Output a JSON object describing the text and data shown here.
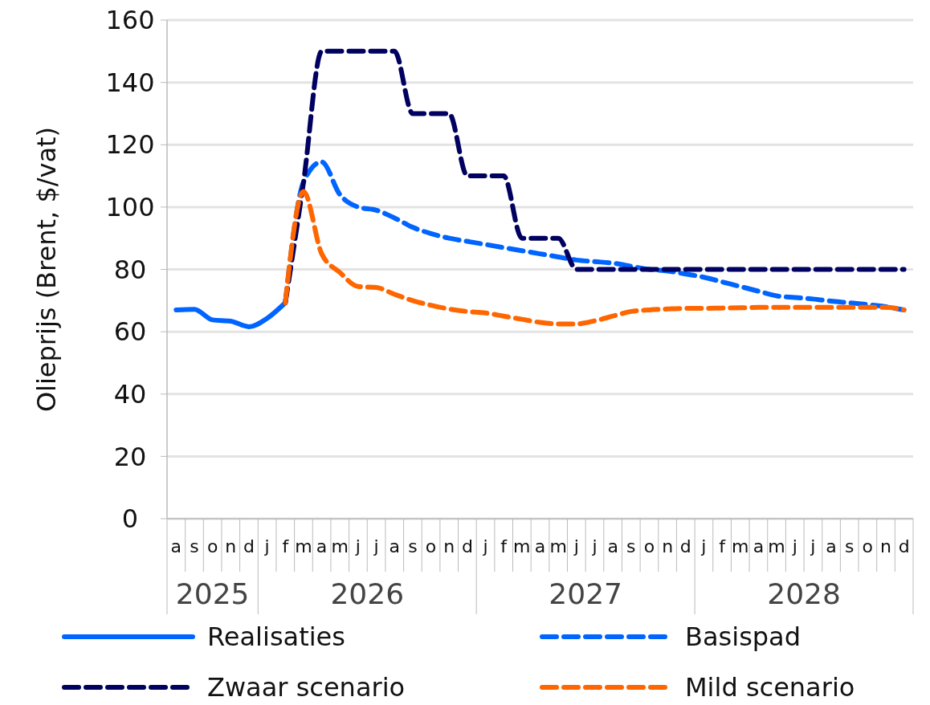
{
  "chart_data": {
    "type": "line",
    "ylabel": "Olieprijs (Brent, $/vat)",
    "categories": [
      "a",
      "s",
      "o",
      "n",
      "d",
      "j",
      "f",
      "m",
      "a",
      "m",
      "j",
      "j",
      "a",
      "s",
      "o",
      "n",
      "d",
      "j",
      "f",
      "m",
      "a",
      "m",
      "j",
      "j",
      "a",
      "s",
      "o",
      "n",
      "d",
      "j",
      "f",
      "m",
      "a",
      "m",
      "j",
      "j",
      "a",
      "s",
      "o",
      "n",
      "d"
    ],
    "annotations": [
      "2025",
      "2026",
      "2027",
      "2028"
    ],
    "ylim": [
      0,
      160
    ],
    "yticks": [
      0,
      20,
      40,
      60,
      80,
      100,
      120,
      140,
      160
    ],
    "grid": "y",
    "legend": "bottom",
    "marker": "none",
    "series": [
      {
        "name": "Realisaties",
        "color": "#0064ff",
        "line_style": "solid",
        "values": [
          67,
          67.2,
          63.8,
          63.4,
          61.6,
          64.3,
          69.3,
          null,
          null,
          null,
          null,
          null,
          null,
          null,
          null,
          null,
          null,
          null,
          null,
          null,
          null,
          null,
          null,
          null,
          null,
          null,
          null,
          null,
          null,
          null,
          null,
          null,
          null,
          null,
          null,
          null,
          null,
          null,
          null,
          null,
          null
        ]
      },
      {
        "name": "Basispad",
        "color": "#0064ff",
        "line_style": "dashed",
        "values": [
          null,
          null,
          null,
          null,
          null,
          null,
          69.3,
          108,
          114.5,
          104,
          100,
          99,
          96.5,
          93.5,
          91.5,
          90,
          89,
          88,
          87,
          86,
          85,
          84,
          83,
          82.5,
          82,
          81,
          80,
          79.5,
          78.5,
          77.5,
          76,
          74.5,
          73,
          71.5,
          71,
          70.5,
          69.8,
          69.3,
          68.7,
          68,
          67
        ]
      },
      {
        "name": "Zwaar scenario",
        "color": "#000060",
        "line_style": "dashed",
        "values": [
          null,
          null,
          null,
          null,
          null,
          null,
          69.3,
          108,
          150,
          150,
          150,
          150,
          150,
          130,
          130,
          130,
          110,
          110,
          110,
          90,
          90,
          90,
          80,
          80,
          80,
          80,
          80,
          80,
          80,
          80,
          80,
          80,
          80,
          80,
          80,
          80,
          80,
          80,
          80,
          80,
          80
        ]
      },
      {
        "name": "Mild scenario",
        "color": "#ff6600",
        "line_style": "dashed",
        "values": [
          null,
          null,
          null,
          null,
          null,
          null,
          69.3,
          105,
          85,
          79,
          74.5,
          74.2,
          72,
          70,
          68.5,
          67.3,
          66.5,
          66,
          65,
          64,
          63,
          62.5,
          62.5,
          63.5,
          65,
          66.5,
          67,
          67.3,
          67.5,
          67.5,
          67.6,
          67.7,
          67.8,
          67.8,
          67.8,
          67.8,
          67.8,
          67.8,
          67.8,
          67.8,
          67
        ]
      }
    ]
  }
}
